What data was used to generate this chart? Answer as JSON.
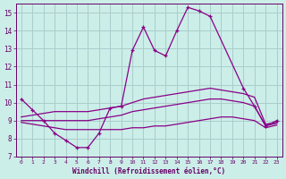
{
  "background_color": "#cceee8",
  "grid_color": "#aacccc",
  "line_color": "#880088",
  "xlabel": "Windchill (Refroidissement éolien,°C)",
  "xlim": [
    -0.5,
    23.5
  ],
  "ylim": [
    7,
    15.5
  ],
  "yticks": [
    7,
    8,
    9,
    10,
    11,
    12,
    13,
    14,
    15
  ],
  "xticks": [
    0,
    1,
    2,
    3,
    4,
    5,
    6,
    7,
    8,
    9,
    10,
    11,
    12,
    13,
    14,
    15,
    16,
    17,
    18,
    19,
    20,
    21,
    22,
    23
  ],
  "series": [
    {
      "x": [
        0,
        1,
        2,
        3,
        4,
        5,
        6,
        7,
        8,
        9,
        10,
        11,
        12,
        13,
        14,
        15,
        16,
        17,
        20,
        21,
        22,
        23
      ],
      "y": [
        10.2,
        9.6,
        9.0,
        8.3,
        7.9,
        7.5,
        7.5,
        8.3,
        9.7,
        9.8,
        12.9,
        14.2,
        12.9,
        12.6,
        14.0,
        15.3,
        15.1,
        14.8,
        10.8,
        9.8,
        8.7,
        9.0
      ],
      "marker": "+"
    },
    {
      "x": [
        0,
        1,
        2,
        3,
        4,
        5,
        6,
        7,
        8,
        9,
        10,
        11,
        12,
        13,
        14,
        15,
        16,
        17,
        18,
        19,
        20,
        21,
        22,
        23
      ],
      "y": [
        9.2,
        9.3,
        9.4,
        9.5,
        9.5,
        9.5,
        9.5,
        9.6,
        9.7,
        9.8,
        10.0,
        10.2,
        10.3,
        10.4,
        10.5,
        10.6,
        10.7,
        10.8,
        10.7,
        10.6,
        10.5,
        10.3,
        8.8,
        8.9
      ],
      "marker": ""
    },
    {
      "x": [
        0,
        1,
        2,
        3,
        4,
        5,
        6,
        7,
        8,
        9,
        10,
        11,
        12,
        13,
        14,
        15,
        16,
        17,
        18,
        19,
        20,
        21,
        22,
        23
      ],
      "y": [
        9.0,
        9.0,
        9.0,
        9.0,
        9.0,
        9.0,
        9.0,
        9.1,
        9.2,
        9.3,
        9.5,
        9.6,
        9.7,
        9.8,
        9.9,
        10.0,
        10.1,
        10.2,
        10.2,
        10.1,
        10.0,
        9.8,
        8.7,
        8.85
      ],
      "marker": ""
    },
    {
      "x": [
        0,
        1,
        2,
        3,
        4,
        5,
        6,
        7,
        8,
        9,
        10,
        11,
        12,
        13,
        14,
        15,
        16,
        17,
        18,
        19,
        20,
        21,
        22,
        23
      ],
      "y": [
        8.9,
        8.8,
        8.7,
        8.6,
        8.5,
        8.5,
        8.5,
        8.5,
        8.5,
        8.5,
        8.6,
        8.6,
        8.7,
        8.7,
        8.8,
        8.9,
        9.0,
        9.1,
        9.2,
        9.2,
        9.1,
        9.0,
        8.6,
        8.75
      ],
      "marker": ""
    }
  ]
}
